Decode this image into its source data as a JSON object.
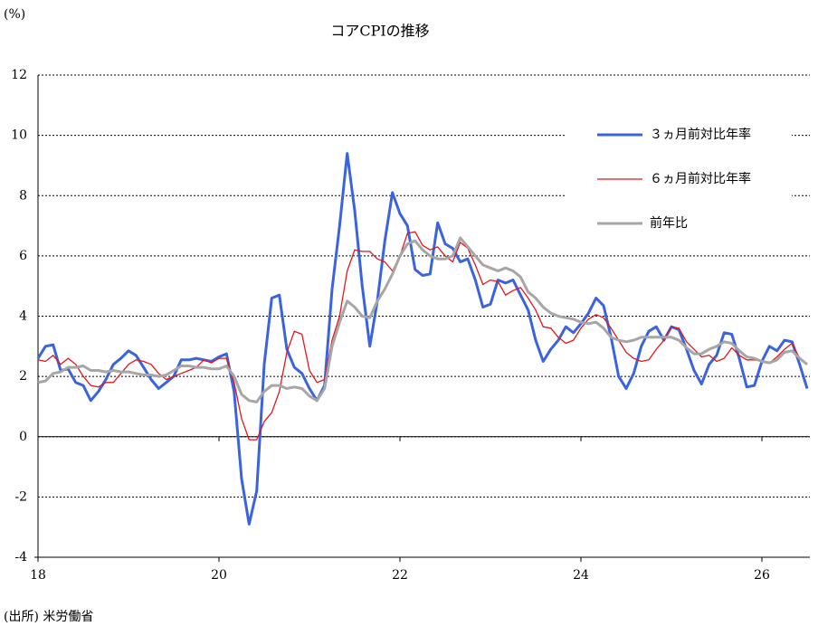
{
  "chart_data": {
    "type": "line",
    "title": "コアCPIの推移",
    "y_unit_label": "(%)",
    "source": "(出所) 米労働省",
    "x": [
      18,
      18.083,
      18.167,
      18.25,
      18.333,
      18.417,
      18.5,
      18.583,
      18.667,
      18.75,
      18.833,
      18.917,
      19,
      19.083,
      19.167,
      19.25,
      19.333,
      19.417,
      19.5,
      19.583,
      19.667,
      19.75,
      19.833,
      19.917,
      20,
      20.083,
      20.167,
      20.25,
      20.333,
      20.417,
      20.5,
      20.583,
      20.667,
      20.75,
      20.833,
      20.917,
      21,
      21.083,
      21.167,
      21.25,
      21.333,
      21.417,
      21.5,
      21.583,
      21.667,
      21.75,
      21.833,
      21.917,
      22,
      22.083,
      22.167,
      22.25,
      22.333,
      22.417,
      22.5,
      22.583,
      22.667,
      22.75,
      22.833,
      22.917,
      23,
      23.083,
      23.167,
      23.25,
      23.333,
      23.417,
      23.5,
      23.583,
      23.667,
      23.75,
      23.833,
      23.917,
      24,
      24.083,
      24.167,
      24.25,
      24.333,
      24.417,
      24.5,
      24.583,
      24.667,
      24.75,
      24.833,
      24.917,
      25,
      25.083,
      25.167,
      25.25,
      25.333,
      25.417,
      25.5,
      25.583,
      25.667,
      25.75,
      25.833,
      25.917,
      26,
      26.083,
      26.167,
      26.25,
      26.333,
      26.417,
      26.5
    ],
    "series": [
      {
        "name": "３ヵ月前対比年率",
        "color": "#3a63e0",
        "width": 3,
        "values": [
          2.6,
          3.0,
          3.05,
          2.2,
          2.25,
          1.8,
          1.7,
          1.2,
          1.5,
          1.9,
          2.4,
          2.6,
          2.85,
          2.7,
          2.3,
          1.9,
          1.6,
          1.8,
          2.0,
          2.55,
          2.55,
          2.6,
          2.55,
          2.5,
          2.65,
          2.75,
          1.5,
          -1.4,
          -2.9,
          -1.8,
          2.4,
          4.6,
          4.7,
          2.9,
          2.3,
          2.1,
          1.6,
          1.2,
          1.7,
          4.9,
          7.0,
          9.4,
          7.5,
          5.0,
          3.0,
          4.5,
          6.5,
          8.1,
          7.4,
          7.0,
          5.55,
          5.35,
          5.4,
          7.1,
          6.4,
          6.25,
          5.8,
          5.9,
          5.2,
          4.3,
          4.4,
          5.2,
          5.1,
          5.2,
          4.7,
          4.2,
          3.2,
          2.5,
          2.9,
          3.2,
          3.65,
          3.45,
          3.75,
          4.1,
          4.6,
          4.35,
          3.3,
          2.0,
          1.6,
          2.1,
          3.0,
          3.5,
          3.65,
          3.2,
          3.65,
          3.55,
          2.9,
          2.2,
          1.75,
          2.4,
          2.7,
          3.45,
          3.4,
          2.6,
          1.65,
          1.7,
          2.5,
          3.0,
          2.85,
          3.2,
          3.15,
          2.4,
          1.6
        ]
      },
      {
        "name": "６ヵ月前対比年率",
        "color": "#e3161c",
        "width": 1.3,
        "values": [
          2.55,
          2.5,
          2.7,
          2.4,
          2.6,
          2.4,
          2.0,
          1.7,
          1.65,
          1.8,
          1.8,
          2.1,
          2.4,
          2.55,
          2.5,
          2.4,
          2.1,
          1.9,
          2.0,
          2.1,
          2.2,
          2.3,
          2.55,
          2.45,
          2.6,
          2.6,
          1.8,
          0.6,
          -0.1,
          -0.1,
          0.5,
          0.8,
          1.5,
          2.8,
          3.5,
          3.4,
          2.2,
          1.8,
          1.9,
          3.2,
          4.0,
          5.5,
          6.2,
          6.15,
          6.15,
          5.9,
          5.8,
          5.5,
          6.0,
          6.75,
          6.8,
          6.35,
          6.2,
          6.3,
          6.0,
          5.8,
          6.45,
          6.25,
          5.7,
          5.05,
          5.2,
          5.15,
          4.7,
          4.85,
          4.95,
          4.6,
          4.2,
          3.65,
          3.6,
          3.3,
          3.1,
          3.2,
          3.6,
          3.9,
          4.05,
          3.95,
          3.6,
          3.2,
          2.8,
          2.6,
          2.5,
          2.55,
          2.9,
          3.2,
          3.65,
          3.6,
          3.15,
          2.9,
          2.65,
          2.7,
          2.5,
          2.6,
          2.95,
          2.7,
          2.55,
          2.55,
          2.5,
          2.45,
          2.65,
          2.9,
          3.1,
          2.6,
          2.4
        ]
      },
      {
        "name": "前年比",
        "color": "#a6a6a6",
        "width": 3,
        "values": [
          1.8,
          1.85,
          2.1,
          2.15,
          2.3,
          2.3,
          2.35,
          2.2,
          2.2,
          2.15,
          2.2,
          2.15,
          2.15,
          2.1,
          2.05,
          2.05,
          2.0,
          2.05,
          2.2,
          2.35,
          2.35,
          2.3,
          2.3,
          2.25,
          2.25,
          2.35,
          2.0,
          1.4,
          1.2,
          1.15,
          1.5,
          1.7,
          1.7,
          1.6,
          1.65,
          1.6,
          1.35,
          1.2,
          1.6,
          3.0,
          3.8,
          4.5,
          4.3,
          4.0,
          3.95,
          4.5,
          4.9,
          5.4,
          6.0,
          6.4,
          6.5,
          6.2,
          6.0,
          5.9,
          5.9,
          6.0,
          6.6,
          6.3,
          6.0,
          5.7,
          5.6,
          5.5,
          5.6,
          5.5,
          5.3,
          4.8,
          4.6,
          4.3,
          4.1,
          4.0,
          3.95,
          3.9,
          3.8,
          3.75,
          3.8,
          3.6,
          3.3,
          3.2,
          3.15,
          3.2,
          3.3,
          3.3,
          3.3,
          3.3,
          3.3,
          3.2,
          2.95,
          2.75,
          2.75,
          2.9,
          3.0,
          3.15,
          3.1,
          2.85,
          2.65,
          2.6,
          2.5,
          2.45,
          2.55,
          2.8,
          2.85,
          2.6,
          2.4
        ]
      }
    ],
    "xlim": [
      18,
      26.53
    ],
    "xticks": [
      18,
      20,
      22,
      24,
      26
    ],
    "ylim": [
      -4,
      12
    ],
    "yticks": [
      -4,
      -2,
      0,
      2,
      4,
      6,
      8,
      10,
      12
    ],
    "grid": true
  }
}
